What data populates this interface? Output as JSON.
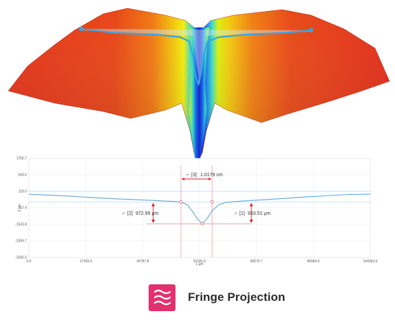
{
  "brand": {
    "name": "Fringe Projection",
    "logo_icon": "wave-lines-icon",
    "logo_color": "#e4306e"
  },
  "surface_view": {
    "colormap": [
      "#1a2fd6",
      "#1f9bff",
      "#2fe0d0",
      "#f4f20a",
      "#f59a12",
      "#e8361a"
    ],
    "profile_line_color": "#36a3e6"
  },
  "chart_data": {
    "type": "line",
    "title": "",
    "xlabel": "L µm",
    "ylabel": "Z µm",
    "x_ticks": [
      "0.0",
      "17393.9",
      "34787.8",
      "52181.6",
      "69575.7",
      "86969.6",
      "104363.5"
    ],
    "y_ticks": [
      "1765.7",
      "943.5",
      "118.0",
      "-707.9",
      "-1533.8",
      "-2359.7",
      "-3185.5"
    ],
    "xlim": [
      0,
      104363.5
    ],
    "ylim": [
      -3185.5,
      1765.7
    ],
    "grid": true,
    "series": [
      {
        "color": "#5aa7d8",
        "x": [
          0,
          6000,
          12000,
          20000,
          27000,
          33000,
          38000,
          42000,
          44500,
          46500,
          48500,
          50000,
          51500,
          53000,
          54500,
          56000,
          58000,
          60000,
          62000,
          65000,
          70000,
          77000,
          84000,
          92000,
          98000,
          104363.5
        ],
        "y": [
          -30,
          -70,
          -120,
          -200,
          -260,
          -300,
          -340,
          -370,
          -390,
          -420,
          -560,
          -880,
          -1250,
          -1500,
          -1240,
          -860,
          -560,
          -440,
          -410,
          -370,
          -320,
          -250,
          -170,
          -90,
          -40,
          -20
        ]
      }
    ],
    "annotations": [
      {
        "id": "3",
        "label": "[3]",
        "value": "1.0179 cm",
        "label_color": "#4a86c8"
      },
      {
        "id": "2",
        "label": "[2]",
        "value": "972.99 µm",
        "label_color": "#d0242b"
      },
      {
        "id": "1",
        "label": "[1]",
        "value": "933.51 µm",
        "label_color": "#e58a1c"
      }
    ]
  }
}
